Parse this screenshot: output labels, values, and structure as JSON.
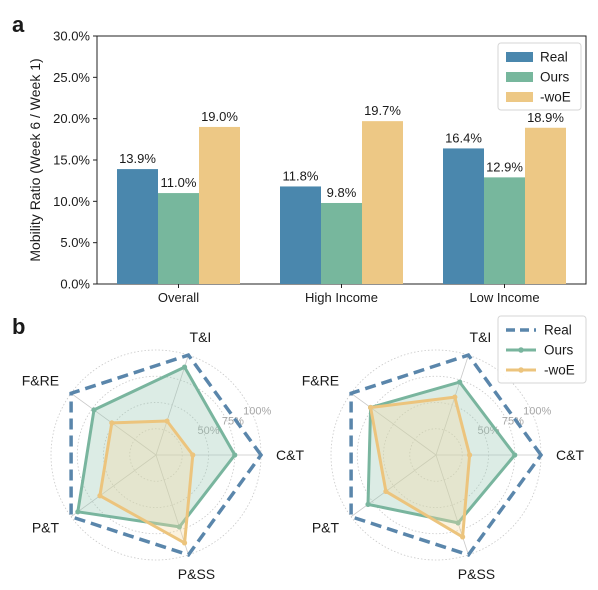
{
  "colors": {
    "real": "#4a87ad",
    "ours": "#77b79d",
    "woe": "#edc885",
    "real_dashed": "#5a86ab",
    "ours_line": "#79b59e",
    "woe_line": "#ecc47d",
    "ours_fill": "#9cc9b5",
    "woe_fill": "#f3d9a4"
  },
  "chart_data": [
    {
      "panel": "a",
      "type": "bar",
      "title": "",
      "xlabel": "",
      "ylabel": "Mobility Ratio (Week 6 / Week 1)",
      "ylim": [
        0,
        30
      ],
      "yticks": [
        "0.0%",
        "5.0%",
        "10.0%",
        "15.0%",
        "20.0%",
        "25.0%",
        "30.0%"
      ],
      "categories": [
        "Overall",
        "High Income",
        "Low Income"
      ],
      "series": [
        {
          "name": "Real",
          "values": [
            13.9,
            11.8,
            16.4
          ],
          "labels": [
            "13.9%",
            "11.8%",
            "16.4%"
          ]
        },
        {
          "name": "Ours",
          "values": [
            11.0,
            9.8,
            12.9
          ],
          "labels": [
            "11.0%",
            "9.8%",
            "12.9%"
          ]
        },
        {
          "name": "-woE",
          "values": [
            19.0,
            19.7,
            18.9
          ],
          "labels": [
            "19.0%",
            "19.7%",
            "18.9%"
          ]
        }
      ],
      "legend_position": "top-right",
      "grid": false
    },
    {
      "panel": "b",
      "type": "radar",
      "axes": [
        "C&T",
        "T&I",
        "F&RE",
        "P&T",
        "P&SS"
      ],
      "rings": [
        0.25,
        0.5,
        0.75,
        1.0
      ],
      "ring_labels": [
        "50%",
        "75%",
        "100%"
      ],
      "legend_position": "top-right",
      "subplots": [
        {
          "series": [
            {
              "name": "Real",
              "values": [
                1.0,
                1.0,
                1.0,
                1.0,
                1.0
              ]
            },
            {
              "name": "Ours",
              "values": [
                0.75,
                0.88,
                0.73,
                0.92,
                0.72
              ]
            },
            {
              "name": "-woE",
              "values": [
                0.35,
                0.34,
                0.52,
                0.66,
                0.88
              ]
            }
          ]
        },
        {
          "series": [
            {
              "name": "Real",
              "values": [
                1.0,
                1.0,
                1.0,
                1.0,
                1.0
              ]
            },
            {
              "name": "Ours",
              "values": [
                0.75,
                0.73,
                0.77,
                0.8,
                0.68
              ]
            },
            {
              "name": "-woE",
              "values": [
                0.32,
                0.58,
                0.77,
                0.59,
                0.82
              ]
            }
          ]
        }
      ]
    }
  ]
}
